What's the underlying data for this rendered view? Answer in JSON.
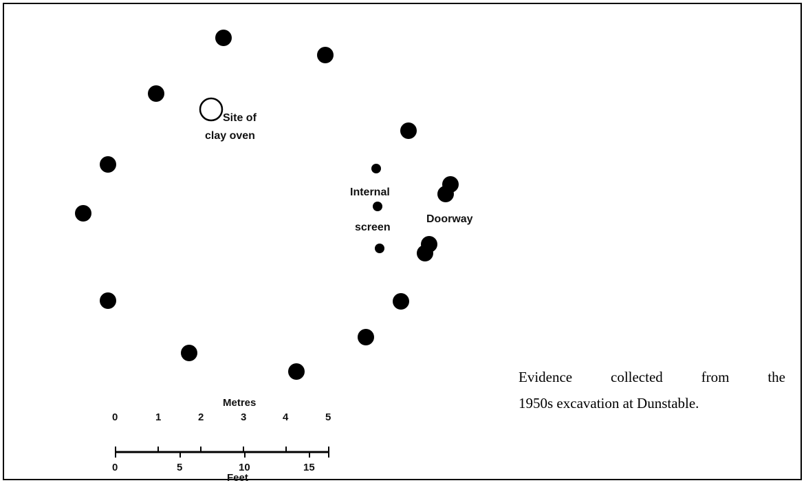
{
  "labels": {
    "oven_line1": "Site of",
    "oven_line2": "clay oven",
    "internal_line1": "Internal",
    "internal_line2": "screen",
    "doorway": "Doorway"
  },
  "scale": {
    "top_unit": "Metres",
    "bottom_unit": "Feet",
    "metres_ticks": [
      "0",
      "1",
      "2",
      "3",
      "4",
      "5"
    ],
    "feet_ticks": [
      "0",
      "5",
      "10",
      "15"
    ]
  },
  "caption": {
    "line1": "Evidence collected from the",
    "line2": "1950s excavation at Dunstable."
  },
  "colors": {
    "ink": "#000000",
    "background": "#ffffff"
  }
}
